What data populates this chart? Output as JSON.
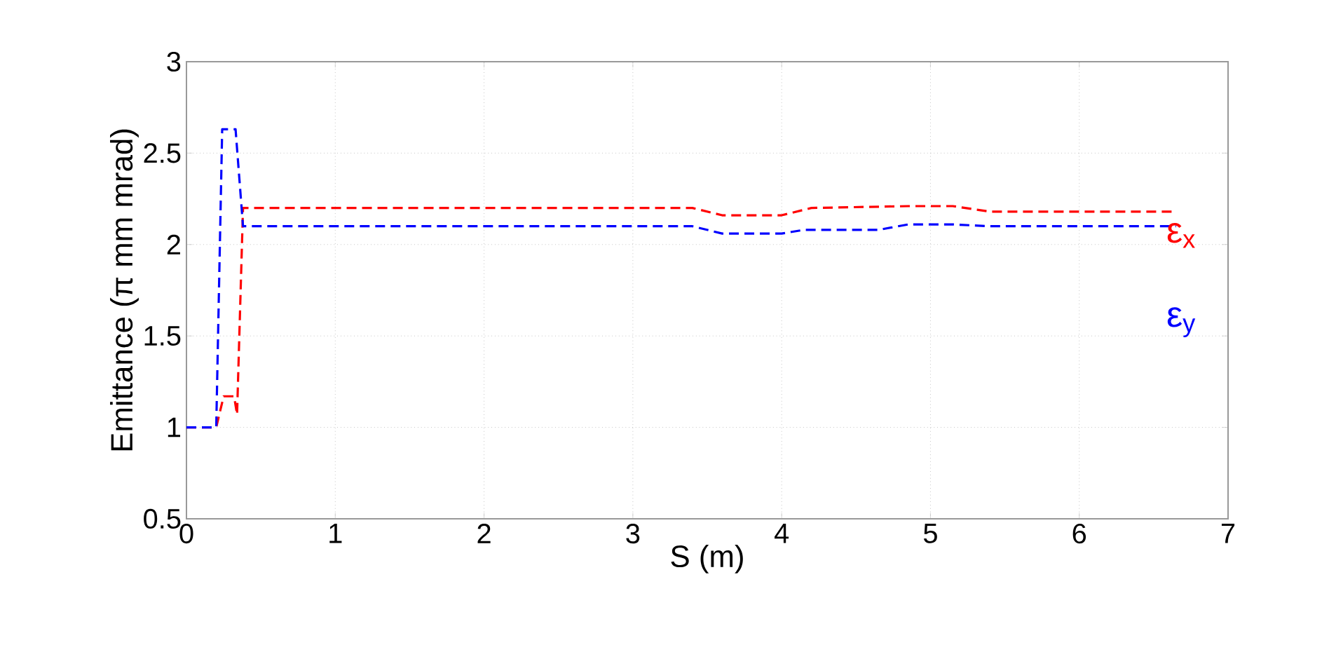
{
  "chart_data": {
    "type": "line",
    "xlabel": "S (m)",
    "ylabel": "Emittance (π mm mrad)",
    "xlim": [
      0,
      7
    ],
    "xticks": [
      0,
      1,
      2,
      3,
      4,
      5,
      6,
      7
    ],
    "ylim": [
      0.5,
      3
    ],
    "yticks": [
      0.5,
      1,
      1.5,
      2,
      2.5,
      3
    ],
    "grid": true,
    "line_style": "dashed",
    "legend": "right",
    "series": [
      {
        "name": "ε$_{x}$",
        "color": "#ff0000",
        "x": [
          0,
          0.2,
          0.25,
          0.32,
          0.34,
          0.38,
          3.4,
          3.6,
          4.0,
          4.2,
          4.85,
          5.15,
          5.4,
          6.65
        ],
        "values": [
          1.0,
          1.0,
          1.17,
          1.17,
          1.07,
          2.2,
          2.2,
          2.16,
          2.16,
          2.2,
          2.21,
          2.21,
          2.18,
          2.18
        ]
      },
      {
        "name": "ε$_{y}$",
        "color": "#0000ff",
        "x": [
          0,
          0.2,
          0.24,
          0.33,
          0.38,
          3.4,
          3.6,
          4.0,
          4.15,
          4.65,
          4.85,
          5.15,
          5.4,
          6.65
        ],
        "values": [
          1.0,
          1.0,
          2.63,
          2.63,
          2.1,
          2.1,
          2.06,
          2.06,
          2.08,
          2.08,
          2.11,
          2.11,
          2.1,
          2.1
        ]
      }
    ]
  }
}
